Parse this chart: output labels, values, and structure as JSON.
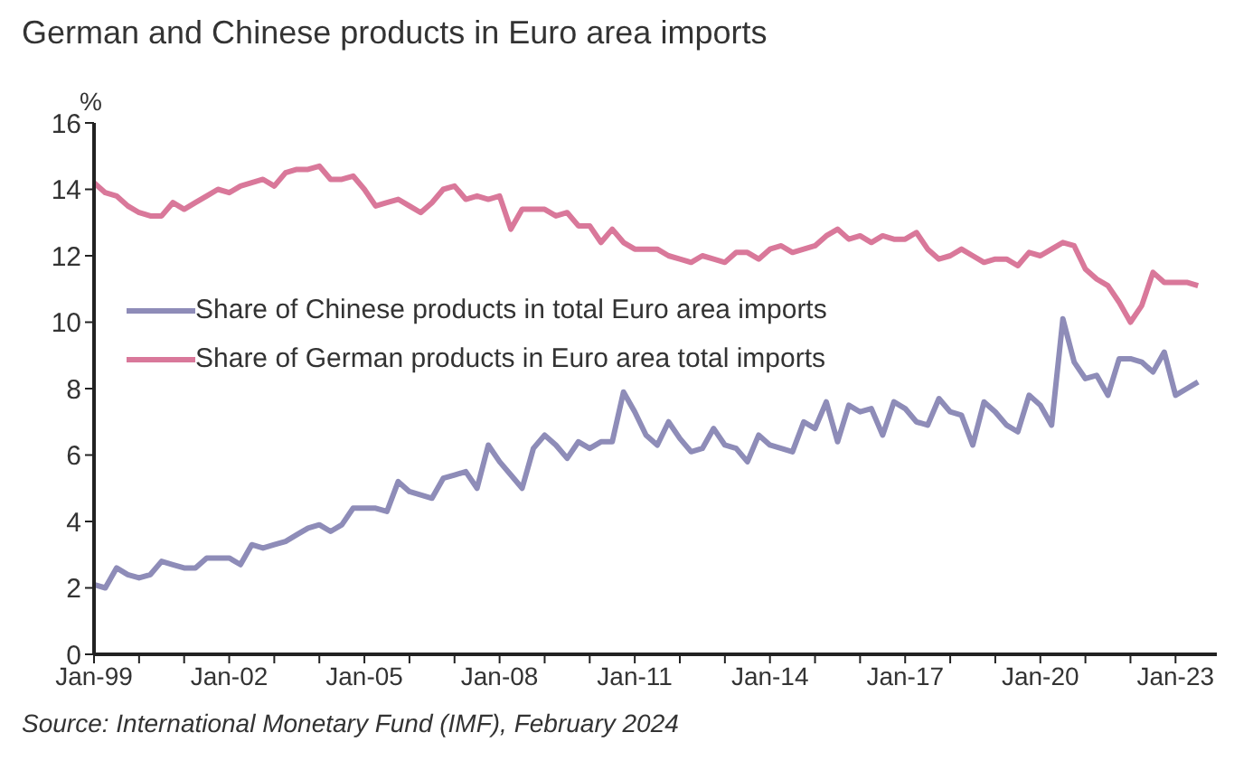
{
  "chart_data": {
    "type": "line",
    "title": "German and Chinese products in Euro area imports",
    "ylabel": "%",
    "annotations": [
      "Source: International Monetary Fund (IMF), February 2024"
    ],
    "x": [
      "1999-01",
      "1999-04",
      "1999-07",
      "1999-10",
      "2000-01",
      "2000-04",
      "2000-07",
      "2000-10",
      "2001-01",
      "2001-04",
      "2001-07",
      "2001-10",
      "2002-01",
      "2002-04",
      "2002-07",
      "2002-10",
      "2003-01",
      "2003-04",
      "2003-07",
      "2003-10",
      "2004-01",
      "2004-04",
      "2004-07",
      "2004-10",
      "2005-01",
      "2005-04",
      "2005-07",
      "2005-10",
      "2006-01",
      "2006-04",
      "2006-07",
      "2006-10",
      "2007-01",
      "2007-04",
      "2007-07",
      "2007-10",
      "2008-01",
      "2008-04",
      "2008-07",
      "2008-10",
      "2009-01",
      "2009-04",
      "2009-07",
      "2009-10",
      "2010-01",
      "2010-04",
      "2010-07",
      "2010-10",
      "2011-01",
      "2011-04",
      "2011-07",
      "2011-10",
      "2012-01",
      "2012-04",
      "2012-07",
      "2012-10",
      "2013-01",
      "2013-04",
      "2013-07",
      "2013-10",
      "2014-01",
      "2014-04",
      "2014-07",
      "2014-10",
      "2015-01",
      "2015-04",
      "2015-07",
      "2015-10",
      "2016-01",
      "2016-04",
      "2016-07",
      "2016-10",
      "2017-01",
      "2017-04",
      "2017-07",
      "2017-10",
      "2018-01",
      "2018-04",
      "2018-07",
      "2018-10",
      "2019-01",
      "2019-04",
      "2019-07",
      "2019-10",
      "2020-01",
      "2020-04",
      "2020-07",
      "2020-10",
      "2021-01",
      "2021-04",
      "2021-07",
      "2021-10",
      "2022-01",
      "2022-04",
      "2022-07",
      "2022-10",
      "2023-01",
      "2023-04",
      "2023-07"
    ],
    "series": [
      {
        "name": "Share of Chinese products in total Euro area imports",
        "color": "#8e8cb8",
        "values": [
          2.1,
          2.0,
          2.6,
          2.4,
          2.3,
          2.4,
          2.8,
          2.7,
          2.6,
          2.6,
          2.9,
          2.9,
          2.9,
          2.7,
          3.3,
          3.2,
          3.3,
          3.4,
          3.6,
          3.8,
          3.9,
          3.7,
          3.9,
          4.4,
          4.4,
          4.4,
          4.3,
          5.2,
          4.9,
          4.8,
          4.7,
          5.3,
          5.4,
          5.5,
          5.0,
          6.3,
          5.8,
          5.4,
          5.0,
          6.2,
          6.6,
          6.3,
          5.9,
          6.4,
          6.2,
          6.4,
          6.4,
          7.9,
          7.3,
          6.6,
          6.3,
          7.0,
          6.5,
          6.1,
          6.2,
          6.8,
          6.3,
          6.2,
          5.8,
          6.6,
          6.3,
          6.2,
          6.1,
          7.0,
          6.8,
          7.6,
          6.4,
          7.5,
          7.3,
          7.4,
          6.6,
          7.6,
          7.4,
          7.0,
          6.9,
          7.7,
          7.3,
          7.2,
          6.3,
          7.6,
          7.3,
          6.9,
          6.7,
          7.8,
          7.5,
          6.9,
          10.1,
          8.8,
          8.3,
          8.4,
          7.8,
          8.9,
          8.9,
          8.8,
          8.5,
          9.1,
          7.8,
          8.0,
          8.2
        ]
      },
      {
        "name": "Share of German products in Euro area total imports",
        "color": "#d9789a",
        "values": [
          14.2,
          13.9,
          13.8,
          13.5,
          13.3,
          13.2,
          13.2,
          13.6,
          13.4,
          13.6,
          13.8,
          14.0,
          13.9,
          14.1,
          14.2,
          14.3,
          14.1,
          14.5,
          14.6,
          14.6,
          14.7,
          14.3,
          14.3,
          14.4,
          14.0,
          13.5,
          13.6,
          13.7,
          13.5,
          13.3,
          13.6,
          14.0,
          14.1,
          13.7,
          13.8,
          13.7,
          13.8,
          12.8,
          13.4,
          13.4,
          13.4,
          13.2,
          13.3,
          12.9,
          12.9,
          12.4,
          12.8,
          12.4,
          12.2,
          12.2,
          12.2,
          12.0,
          11.9,
          11.8,
          12.0,
          11.9,
          11.8,
          12.1,
          12.1,
          11.9,
          12.2,
          12.3,
          12.1,
          12.2,
          12.3,
          12.6,
          12.8,
          12.5,
          12.6,
          12.4,
          12.6,
          12.5,
          12.5,
          12.7,
          12.2,
          11.9,
          12.0,
          12.2,
          12.0,
          11.8,
          11.9,
          11.9,
          11.7,
          12.1,
          12.0,
          12.2,
          12.4,
          12.3,
          11.6,
          11.3,
          11.1,
          10.6,
          10.0,
          10.5,
          11.5,
          11.2,
          11.2,
          11.2,
          11.1
        ]
      }
    ],
    "xlim": [
      "1999-01",
      "2023-12"
    ],
    "xticks": [
      {
        "value": "1999-01",
        "label": "Jan-99"
      },
      {
        "value": "2000-01",
        "label": null
      },
      {
        "value": "2001-01",
        "label": null
      },
      {
        "value": "2002-01",
        "label": "Jan-02"
      },
      {
        "value": "2003-01",
        "label": null
      },
      {
        "value": "2004-01",
        "label": null
      },
      {
        "value": "2005-01",
        "label": "Jan-05"
      },
      {
        "value": "2006-01",
        "label": null
      },
      {
        "value": "2007-01",
        "label": null
      },
      {
        "value": "2008-01",
        "label": "Jan-08"
      },
      {
        "value": "2009-01",
        "label": null
      },
      {
        "value": "2010-01",
        "label": null
      },
      {
        "value": "2011-01",
        "label": "Jan-11"
      },
      {
        "value": "2012-01",
        "label": null
      },
      {
        "value": "2013-01",
        "label": null
      },
      {
        "value": "2014-01",
        "label": "Jan-14"
      },
      {
        "value": "2015-01",
        "label": null
      },
      {
        "value": "2016-01",
        "label": null
      },
      {
        "value": "2017-01",
        "label": "Jan-17"
      },
      {
        "value": "2018-01",
        "label": null
      },
      {
        "value": "2019-01",
        "label": null
      },
      {
        "value": "2020-01",
        "label": "Jan-20"
      },
      {
        "value": "2021-01",
        "label": null
      },
      {
        "value": "2022-01",
        "label": null
      },
      {
        "value": "2023-01",
        "label": "Jan-23"
      }
    ],
    "ylim": [
      0,
      16
    ],
    "yticks": [
      0,
      2,
      4,
      6,
      8,
      10,
      12,
      14,
      16
    ],
    "grid": false,
    "legend": "left",
    "marker": "none",
    "line_style": "solid"
  }
}
